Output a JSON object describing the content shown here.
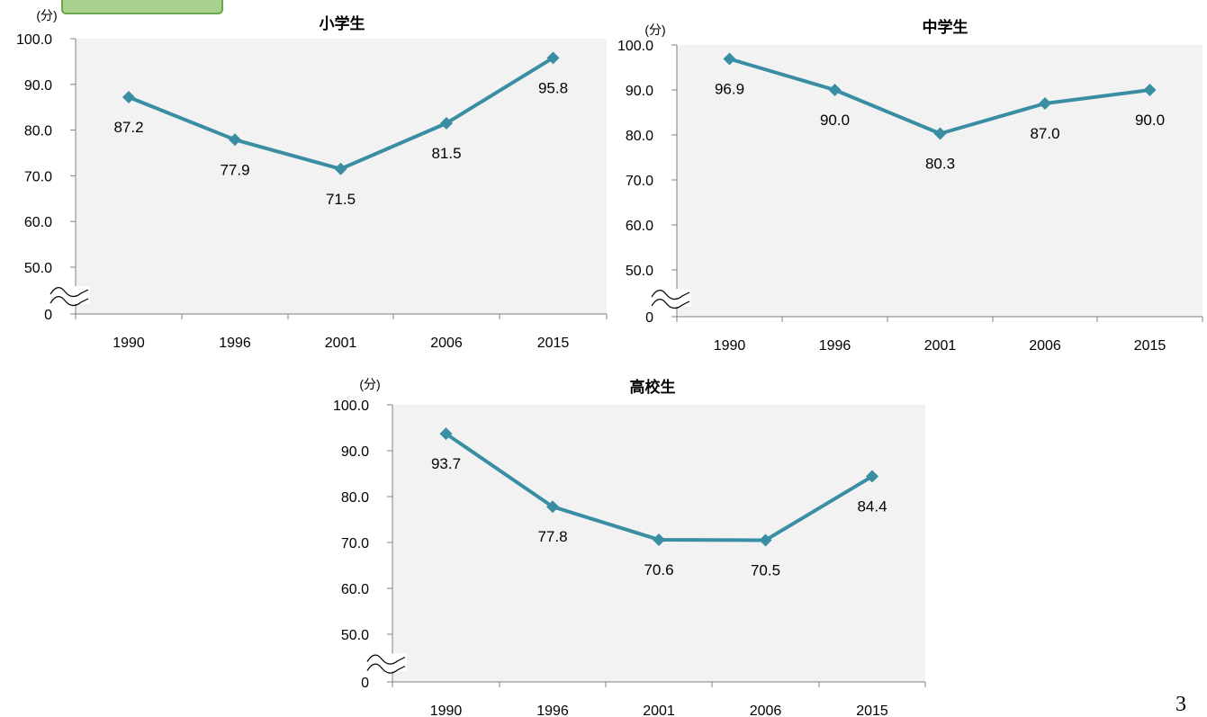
{
  "page": {
    "page_number": "3",
    "accent_color": "#a9d18e"
  },
  "chart_data": [
    {
      "type": "line",
      "title": "小学生",
      "unit_label": "(分)",
      "categories": [
        "1990",
        "1996",
        "2001",
        "2006",
        "2015"
      ],
      "values": [
        87.2,
        77.9,
        71.5,
        81.5,
        95.8
      ],
      "value_labels": [
        "87.2",
        "77.9",
        "71.5",
        "81.5",
        "95.8"
      ],
      "yticks": [
        "0",
        "50.0",
        "60.0",
        "70.0",
        "80.0",
        "90.0",
        "100.0"
      ],
      "ylim": [
        50,
        100
      ],
      "axis_break": true,
      "color": "#3a8ea3",
      "grid": false
    },
    {
      "type": "line",
      "title": "中学生",
      "unit_label": "(分)",
      "categories": [
        "1990",
        "1996",
        "2001",
        "2006",
        "2015"
      ],
      "values": [
        96.9,
        90.0,
        80.3,
        87.0,
        90.0
      ],
      "value_labels": [
        "96.9",
        "90.0",
        "80.3",
        "87.0",
        "90.0"
      ],
      "yticks": [
        "0",
        "50.0",
        "60.0",
        "70.0",
        "80.0",
        "90.0",
        "100.0"
      ],
      "ylim": [
        50,
        100
      ],
      "axis_break": true,
      "color": "#3a8ea3",
      "grid": false
    },
    {
      "type": "line",
      "title": "高校生",
      "unit_label": "(分)",
      "categories": [
        "1990",
        "1996",
        "2001",
        "2006",
        "2015"
      ],
      "values": [
        93.7,
        77.8,
        70.6,
        70.5,
        84.4
      ],
      "value_labels": [
        "93.7",
        "77.8",
        "70.6",
        "70.5",
        "84.4"
      ],
      "yticks": [
        "0",
        "50.0",
        "60.0",
        "70.0",
        "80.0",
        "90.0",
        "100.0"
      ],
      "ylim": [
        50,
        100
      ],
      "axis_break": true,
      "color": "#3a8ea3",
      "grid": false
    }
  ]
}
